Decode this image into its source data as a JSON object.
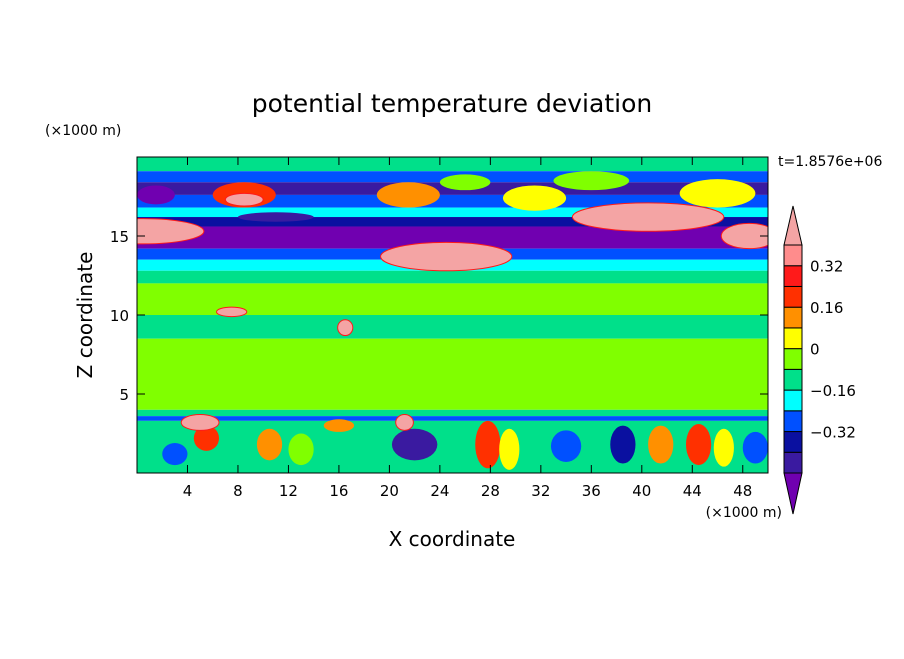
{
  "chart_data": {
    "type": "heatmap",
    "title": "potential temperature deviation",
    "xlabel": "X coordinate",
    "ylabel": "Z coordinate",
    "x_unit": "(×1000 m)",
    "y_unit": "(×1000 m)",
    "time_label": "t=1.8576e+06",
    "xlim": [
      0,
      50
    ],
    "ylim": [
      0,
      20
    ],
    "x_ticks": [
      4,
      8,
      12,
      16,
      20,
      24,
      28,
      32,
      36,
      40,
      44,
      48
    ],
    "y_ticks": [
      5,
      10,
      15
    ],
    "colorbar": {
      "levels": [
        -0.48,
        -0.4,
        -0.32,
        -0.24,
        -0.16,
        -0.08,
        0,
        0.08,
        0.16,
        0.24,
        0.32,
        0.4
      ],
      "colors": [
        "#7000b0",
        "#3a1aa0",
        "#0a10a0",
        "#0050ff",
        "#00ffff",
        "#00e08a",
        "#80ff00",
        "#ffff00",
        "#ff9000",
        "#ff3000",
        "#ff1a1a",
        "#ff8c8c",
        "#f4a4a4"
      ],
      "tick_labels": [
        {
          "value": -0.32,
          "label": "−0.32"
        },
        {
          "value": -0.16,
          "label": "−0.16"
        },
        {
          "value": 0,
          "label": "0"
        },
        {
          "value": 0.16,
          "label": "0.16"
        },
        {
          "value": 0.32,
          "label": "0.32"
        }
      ]
    },
    "bands": [
      {
        "z": [
          19.1,
          20.0
        ],
        "color": "#00e08a"
      },
      {
        "z": [
          18.4,
          19.1
        ],
        "color": "#0050ff"
      },
      {
        "z": [
          17.6,
          18.4
        ],
        "color": "#3a1aa0"
      },
      {
        "z": [
          16.8,
          17.6
        ],
        "color": "#0050ff"
      },
      {
        "z": [
          16.2,
          16.8
        ],
        "color": "#00ffff"
      },
      {
        "z": [
          15.6,
          16.2
        ],
        "color": "#0a10a0"
      },
      {
        "z": [
          14.2,
          15.6
        ],
        "color": "#7000b0"
      },
      {
        "z": [
          13.5,
          14.2
        ],
        "color": "#0050ff"
      },
      {
        "z": [
          12.8,
          13.5
        ],
        "color": "#00ffff"
      },
      {
        "z": [
          12.0,
          12.8
        ],
        "color": "#00e08a"
      },
      {
        "z": [
          10.0,
          12.0
        ],
        "color": "#80ff00"
      },
      {
        "z": [
          8.5,
          10.0
        ],
        "color": "#00e08a"
      },
      {
        "z": [
          4.0,
          8.5
        ],
        "color": "#80ff00"
      },
      {
        "z": [
          3.6,
          4.0
        ],
        "color": "#00e08a"
      },
      {
        "z": [
          3.3,
          3.6
        ],
        "color": "#0050ff"
      },
      {
        "z": [
          0.0,
          3.3
        ],
        "color": "#00e08a"
      }
    ],
    "regions": [
      {
        "x": 0.5,
        "z": 15.3,
        "rx": 4.8,
        "rz": 0.8,
        "color": "#f4a4a4"
      },
      {
        "x": 24.5,
        "z": 13.7,
        "rx": 5.2,
        "rz": 0.9,
        "color": "#f4a4a4"
      },
      {
        "x": 40.5,
        "z": 16.2,
        "rx": 6.0,
        "rz": 0.9,
        "color": "#f4a4a4"
      },
      {
        "x": 48.5,
        "z": 15.0,
        "rx": 2.2,
        "rz": 0.8,
        "color": "#f4a4a4"
      },
      {
        "x": 7.5,
        "z": 10.2,
        "rx": 1.2,
        "rz": 0.3,
        "color": "#f4a4a4"
      },
      {
        "x": 16.5,
        "z": 9.2,
        "rx": 0.6,
        "rz": 0.5,
        "color": "#f4a4a4"
      },
      {
        "x": 8.5,
        "z": 17.6,
        "rx": 2.5,
        "rz": 0.8,
        "color": "#ff3000"
      },
      {
        "x": 8.5,
        "z": 17.3,
        "rx": 1.5,
        "rz": 0.4,
        "color": "#f4a4a4"
      },
      {
        "x": 21.5,
        "z": 17.6,
        "rx": 2.5,
        "rz": 0.8,
        "color": "#ff9000"
      },
      {
        "x": 26.0,
        "z": 18.4,
        "rx": 2.0,
        "rz": 0.5,
        "color": "#80ff00"
      },
      {
        "x": 31.5,
        "z": 17.4,
        "rx": 2.5,
        "rz": 0.8,
        "color": "#ffff00"
      },
      {
        "x": 46.0,
        "z": 17.7,
        "rx": 3.0,
        "rz": 0.9,
        "color": "#ffff00"
      },
      {
        "x": 36.0,
        "z": 18.5,
        "rx": 3.0,
        "rz": 0.6,
        "color": "#80ff00"
      },
      {
        "x": 11.0,
        "z": 16.2,
        "rx": 3.0,
        "rz": 0.3,
        "color": "#3a1aa0"
      },
      {
        "x": 1.5,
        "z": 17.6,
        "rx": 1.5,
        "rz": 0.6,
        "color": "#7000b0"
      },
      {
        "x": 16.0,
        "z": 3.0,
        "rx": 1.2,
        "rz": 0.4,
        "color": "#ff9000"
      },
      {
        "x": 22.0,
        "z": 1.8,
        "rx": 1.8,
        "rz": 1.0,
        "color": "#3a1aa0"
      },
      {
        "x": 27.8,
        "z": 1.8,
        "rx": 1.0,
        "rz": 1.5,
        "color": "#ff3000"
      },
      {
        "x": 29.5,
        "z": 1.5,
        "rx": 0.8,
        "rz": 1.3,
        "color": "#ffff00"
      },
      {
        "x": 38.5,
        "z": 1.8,
        "rx": 1.0,
        "rz": 1.2,
        "color": "#0a10a0"
      },
      {
        "x": 44.5,
        "z": 1.8,
        "rx": 1.0,
        "rz": 1.3,
        "color": "#ff3000"
      },
      {
        "x": 46.5,
        "z": 1.6,
        "rx": 0.8,
        "rz": 1.2,
        "color": "#ffff00"
      },
      {
        "x": 5.5,
        "z": 2.2,
        "rx": 1.0,
        "rz": 0.8,
        "color": "#ff3000"
      },
      {
        "x": 3.0,
        "z": 1.2,
        "rx": 1.0,
        "rz": 0.7,
        "color": "#0050ff"
      },
      {
        "x": 10.5,
        "z": 1.8,
        "rx": 1.0,
        "rz": 1.0,
        "color": "#ff9000"
      },
      {
        "x": 13.0,
        "z": 1.5,
        "rx": 1.0,
        "rz": 1.0,
        "color": "#80ff00"
      },
      {
        "x": 34.0,
        "z": 1.7,
        "rx": 1.2,
        "rz": 1.0,
        "color": "#0050ff"
      },
      {
        "x": 41.5,
        "z": 1.8,
        "rx": 1.0,
        "rz": 1.2,
        "color": "#ff9000"
      },
      {
        "x": 49.0,
        "z": 1.6,
        "rx": 1.0,
        "rz": 1.0,
        "color": "#0050ff"
      },
      {
        "x": 5.0,
        "z": 3.2,
        "rx": 1.5,
        "rz": 0.5,
        "color": "#f4a4a4"
      },
      {
        "x": 21.2,
        "z": 3.2,
        "rx": 0.7,
        "rz": 0.5,
        "color": "#f4a4a4"
      }
    ]
  }
}
